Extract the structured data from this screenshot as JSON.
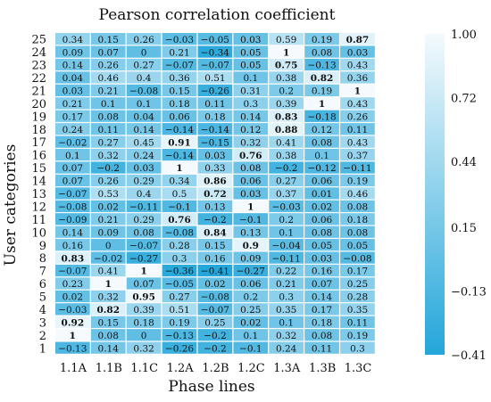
{
  "chart_data": {
    "type": "heatmap",
    "title": "Pearson correlation coefficient",
    "xlabel": "Phase lines",
    "ylabel": "User categories",
    "x_categories": [
      "1.1A",
      "1.1B",
      "1.1C",
      "1.2A",
      "1.2B",
      "1.2C",
      "1.3A",
      "1.3B",
      "1.3C"
    ],
    "y_categories": [
      "25",
      "24",
      "23",
      "22",
      "21",
      "20",
      "19",
      "18",
      "17",
      "16",
      "15",
      "14",
      "13",
      "12",
      "11",
      "10",
      "9",
      "8",
      "7",
      "6",
      "5",
      "4",
      "3",
      "2",
      "1"
    ],
    "values": [
      [
        "0.34",
        "0.15",
        "0.26",
        "−0.03",
        "−0.05",
        "0.03",
        "0.59",
        "0.19",
        "0.87"
      ],
      [
        "0.09",
        "0.07",
        "0",
        "0.21",
        "−0.34",
        "0.05",
        "1",
        "0.08",
        "0.03"
      ],
      [
        "0.14",
        "0.26",
        "0.27",
        "−0.07",
        "−0.07",
        "0.05",
        "0.75",
        "−0.13",
        "0.43"
      ],
      [
        "0.04",
        "0.46",
        "0.4",
        "0.36",
        "0.51",
        "0.1",
        "0.38",
        "0.82",
        "0.36"
      ],
      [
        "0.03",
        "0.21",
        "−0.08",
        "0.15",
        "−0.26",
        "0.31",
        "0.2",
        "0.19",
        "1"
      ],
      [
        "0.21",
        "0.1",
        "0.1",
        "0.18",
        "0.11",
        "0.3",
        "0.39",
        "1",
        "0.43"
      ],
      [
        "0.17",
        "0.08",
        "0.04",
        "0.06",
        "0.18",
        "0.14",
        "0.83",
        "−0.18",
        "0.26"
      ],
      [
        "0.24",
        "0.11",
        "0.14",
        "−0.14",
        "−0.14",
        "0.12",
        "0.88",
        "0.12",
        "0.11"
      ],
      [
        "−0.02",
        "0.27",
        "0.45",
        "0.91",
        "−0.15",
        "0.32",
        "0.41",
        "0.08",
        "0.43"
      ],
      [
        "0.1",
        "0.32",
        "0.24",
        "−0.14",
        "0.03",
        "0.76",
        "0.38",
        "0.1",
        "0.37"
      ],
      [
        "0.07",
        "−0.2",
        "0.03",
        "1",
        "0.33",
        "0.08",
        "−0.2",
        "−0.12",
        "−0.11"
      ],
      [
        "0.07",
        "0.26",
        "0.29",
        "0.34",
        "0.86",
        "0.06",
        "0.27",
        "0.06",
        "0.19"
      ],
      [
        "−0.07",
        "0.53",
        "0.4",
        "0.5",
        "0.72",
        "0.03",
        "0.37",
        "0.01",
        "0.46"
      ],
      [
        "−0.08",
        "0.02",
        "−0.11",
        "−0.1",
        "0.13",
        "1",
        "−0.03",
        "0.02",
        "0.08"
      ],
      [
        "−0.09",
        "0.21",
        "0.29",
        "0.76",
        "−0.2",
        "−0.1",
        "0.2",
        "0.06",
        "0.18"
      ],
      [
        "0.14",
        "0.09",
        "0.08",
        "−0.08",
        "0.84",
        "0.13",
        "0.1",
        "0.08",
        "0.08"
      ],
      [
        "0.16",
        "0",
        "−0.07",
        "0.28",
        "0.15",
        "0.9",
        "−0.04",
        "0.05",
        "0.05"
      ],
      [
        "0.83",
        "−0.02",
        "−0.27",
        "0.3",
        "0.16",
        "0.09",
        "−0.11",
        "0.03",
        "−0.08"
      ],
      [
        "−0.07",
        "0.41",
        "1",
        "−0.36",
        "−0.41",
        "−0.27",
        "0.22",
        "0.16",
        "0.17"
      ],
      [
        "0.23",
        "1",
        "0.07",
        "−0.05",
        "0.02",
        "0.06",
        "0.21",
        "0.07",
        "0.25"
      ],
      [
        "0.02",
        "0.32",
        "0.95",
        "0.27",
        "−0.08",
        "0.2",
        "0.3",
        "0.14",
        "0.28"
      ],
      [
        "−0.03",
        "0.82",
        "0.39",
        "0.51",
        "−0.07",
        "0.25",
        "0.35",
        "0.17",
        "0.35"
      ],
      [
        "0.92",
        "0.15",
        "0.18",
        "0.19",
        "0.25",
        "0.02",
        "0.1",
        "0.18",
        "0.11"
      ],
      [
        "1",
        "0.08",
        "0",
        "−0.13",
        "−0.2",
        "0.1",
        "0.32",
        "0.08",
        "0.19"
      ],
      [
        "−0.13",
        "0.14",
        "0.32",
        "−0.26",
        "−0.2",
        "−0.1",
        "0.24",
        "0.11",
        "0.3"
      ]
    ],
    "bold_threshold": 0.7,
    "value_range": [
      -0.41,
      1.0
    ],
    "colorbar": {
      "ticks": [
        "1.00",
        "0.72",
        "0.44",
        "0.15",
        "−0.13",
        "−0.41"
      ],
      "tick_values": [
        1.0,
        0.72,
        0.44,
        0.15,
        -0.13,
        -0.41
      ]
    },
    "colors": {
      "high": "#f4fafd",
      "low": "#23a6da",
      "text": "#111111"
    }
  }
}
